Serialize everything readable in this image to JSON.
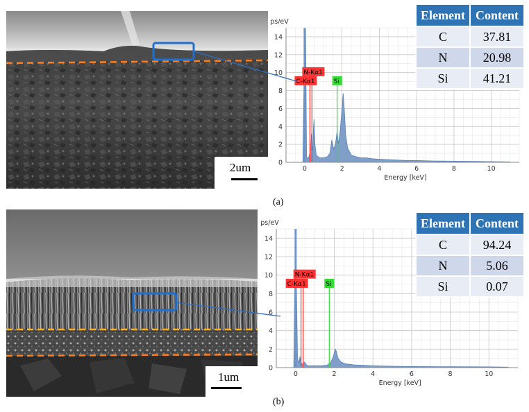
{
  "panels": [
    {
      "id": "a",
      "caption": "(a)",
      "scale_bar": "2um",
      "table": {
        "headers": [
          "Element",
          "Content"
        ],
        "rows": [
          [
            "C",
            "37.81"
          ],
          [
            "N",
            "20.98"
          ],
          [
            "Si",
            "41.21"
          ]
        ]
      }
    },
    {
      "id": "b",
      "caption": "(b)",
      "scale_bar": "1um",
      "table": {
        "headers": [
          "Element",
          "Content"
        ],
        "rows": [
          [
            "C",
            "94.24"
          ],
          [
            "N",
            "5.06"
          ],
          [
            "Si",
            "0.07"
          ]
        ]
      }
    }
  ],
  "chart_data": [
    {
      "type": "area",
      "ylabel": "cps/eV",
      "xlabel": "Energy [keV]",
      "xlim": [
        -1,
        11.5
      ],
      "ylim": [
        0,
        15
      ],
      "xticks": [
        0,
        2,
        4,
        6,
        8,
        10
      ],
      "yticks": [
        0,
        2,
        4,
        6,
        8,
        10,
        12,
        14
      ],
      "grid": true,
      "annotations": [
        {
          "text": "N-Kα1",
          "x": 0.39,
          "color": "#ff3333"
        },
        {
          "text": "C-Kα1",
          "x": 0.28,
          "color": "#ff3333"
        },
        {
          "text": "Si",
          "x": 1.74,
          "color": "#33dd33"
        }
      ],
      "spectrum": {
        "x": [
          -1,
          -0.1,
          0,
          0.05,
          0.1,
          0.18,
          0.24,
          0.28,
          0.32,
          0.36,
          0.39,
          0.43,
          0.47,
          0.5,
          0.55,
          0.62,
          0.8,
          1.0,
          1.2,
          1.35,
          1.45,
          1.55,
          1.65,
          1.74,
          1.8,
          1.9,
          2.0,
          2.06,
          2.12,
          2.2,
          2.3,
          2.5,
          2.8,
          3.0,
          3.3,
          3.6,
          4.0,
          4.5,
          5.0,
          5.5,
          6.0,
          7.0,
          8.0,
          9.0,
          10.0,
          11.0
        ],
        "y": [
          0,
          0,
          14.8,
          14.8,
          0.6,
          0.4,
          0.7,
          1.0,
          1.6,
          3.2,
          1.9,
          1.4,
          3.8,
          4.8,
          2.0,
          0.8,
          0.5,
          0.5,
          0.6,
          1.0,
          2.5,
          1.5,
          2.0,
          3.6,
          2.0,
          3.5,
          6.0,
          7.7,
          6.0,
          3.0,
          1.6,
          0.8,
          0.6,
          0.5,
          0.5,
          0.4,
          0.35,
          0.3,
          0.25,
          0.2,
          0.2,
          0.15,
          0.12,
          0.1,
          0.08,
          0.05
        ]
      }
    },
    {
      "type": "area",
      "ylabel": "cps/eV",
      "xlabel": "Energy [keV]",
      "xlim": [
        -1,
        11.5
      ],
      "ylim": [
        0,
        15
      ],
      "xticks": [
        0,
        2,
        4,
        6,
        8,
        10
      ],
      "yticks": [
        0,
        2,
        4,
        6,
        8,
        10,
        12,
        14
      ],
      "grid": true,
      "annotations": [
        {
          "text": "N-Kα1",
          "x": 0.39,
          "color": "#ff3333"
        },
        {
          "text": "C-Kα1",
          "x": 0.28,
          "color": "#ff3333"
        },
        {
          "text": "Si",
          "x": 1.74,
          "color": "#33dd33"
        }
      ],
      "spectrum": {
        "x": [
          -1,
          -0.1,
          0,
          0.1,
          0.18,
          0.22,
          0.26,
          0.3,
          0.36,
          0.45,
          0.6,
          0.8,
          1.0,
          1.3,
          1.6,
          1.8,
          1.95,
          2.05,
          2.1,
          2.2,
          2.35,
          2.6,
          3.0,
          3.5,
          4.0,
          5.0,
          6.0,
          8.0,
          10.0,
          11.0
        ],
        "y": [
          0,
          0,
          14.8,
          1.0,
          0.5,
          1.2,
          0.6,
          0.5,
          0.3,
          0.6,
          0.2,
          0.2,
          0.2,
          0.2,
          0.25,
          0.5,
          1.2,
          2.0,
          1.8,
          1.0,
          0.6,
          0.4,
          0.3,
          0.25,
          0.2,
          0.15,
          0.12,
          0.1,
          0.08,
          0.05
        ]
      }
    }
  ]
}
